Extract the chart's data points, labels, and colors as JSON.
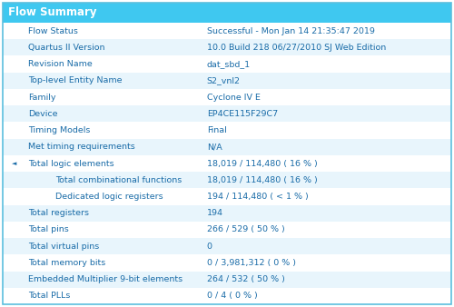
{
  "title": "Flow Summary",
  "title_bg": "#3FC8F0",
  "title_color": "#FFFFFF",
  "table_bg": "#FFFFFF",
  "border_color": "#5BBFDE",
  "row_bg_even": "#FFFFFF",
  "row_bg_odd": "#E8F5FC",
  "text_color": "#1A6CA8",
  "rows": [
    {
      "label": "Flow Status",
      "value": "Successful - Mon Jan 14 21:35:47 2019",
      "indent": 0,
      "bullet": false
    },
    {
      "label": "Quartus II Version",
      "value": "10.0 Build 218 06/27/2010 SJ Web Edition",
      "indent": 0,
      "bullet": false
    },
    {
      "label": "Revision Name",
      "value": "dat_sbd_1",
      "indent": 0,
      "bullet": false
    },
    {
      "label": "Top-level Entity Name",
      "value": "S2_vnl2",
      "indent": 0,
      "bullet": false
    },
    {
      "label": "Family",
      "value": "Cyclone IV E",
      "indent": 0,
      "bullet": false
    },
    {
      "label": "Device",
      "value": "EP4CE115F29C7",
      "indent": 0,
      "bullet": false
    },
    {
      "label": "Timing Models",
      "value": "Final",
      "indent": 0,
      "bullet": false
    },
    {
      "label": "Met timing requirements",
      "value": "N/A",
      "indent": 0,
      "bullet": false
    },
    {
      "label": "Total logic elements",
      "value": "18,019 / 114,480 ( 16 % )",
      "indent": 0,
      "bullet": true
    },
    {
      "label": "Total combinational functions",
      "value": "18,019 / 114,480 ( 16 % )",
      "indent": 1,
      "bullet": false
    },
    {
      "label": "Dedicated logic registers",
      "value": "194 / 114,480 ( < 1 % )",
      "indent": 1,
      "bullet": false
    },
    {
      "label": "Total registers",
      "value": "194",
      "indent": 0,
      "bullet": false
    },
    {
      "label": "Total pins",
      "value": "266 / 529 ( 50 % )",
      "indent": 0,
      "bullet": false
    },
    {
      "label": "Total virtual pins",
      "value": "0",
      "indent": 0,
      "bullet": false
    },
    {
      "label": "Total memory bits",
      "value": "0 / 3,981,312 ( 0 % )",
      "indent": 0,
      "bullet": false
    },
    {
      "label": "Embedded Multiplier 9-bit elements",
      "value": "264 / 532 ( 50 % )",
      "indent": 0,
      "bullet": false
    },
    {
      "label": "Total PLLs",
      "value": "0 / 4 ( 0 % )",
      "indent": 0,
      "bullet": false
    }
  ],
  "figsize": [
    5.0,
    3.38
  ],
  "dpi": 100,
  "title_fontsize": 8.5,
  "row_fontsize": 6.8,
  "bullet_fontsize": 5.0
}
